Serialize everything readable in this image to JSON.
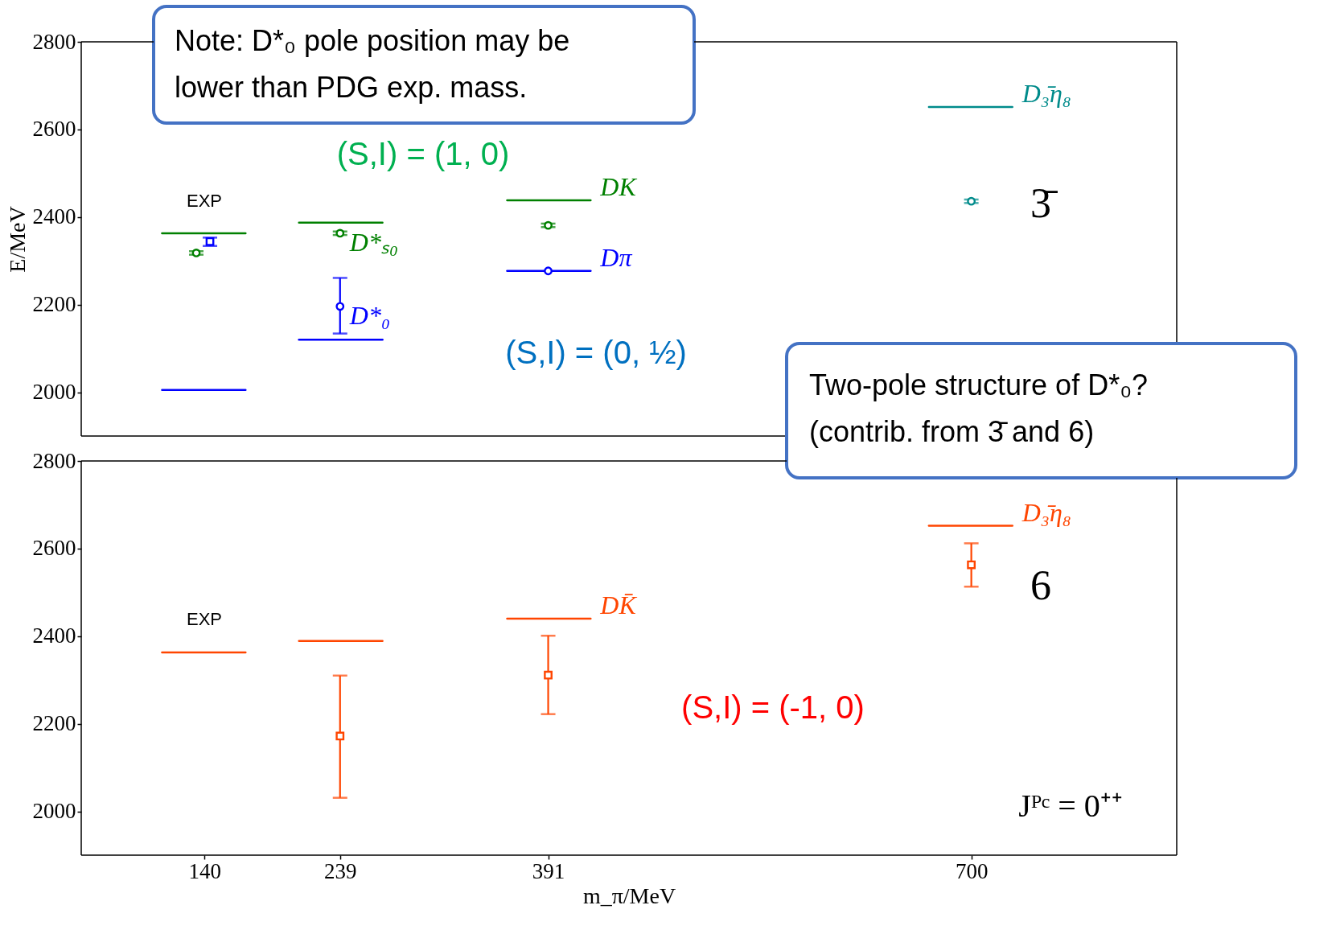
{
  "chart_data": [
    {
      "type": "scatter",
      "ylabel": "E/MeV",
      "xlim": [
        50,
        850
      ],
      "xticks": [
        140,
        239,
        391,
        700
      ],
      "ylim": [
        1900,
        2800
      ],
      "yticks": [
        2000,
        2200,
        2400,
        2600,
        2800
      ],
      "tick_labels": "y",
      "series": [
        {
          "type": "line",
          "color": "#008000",
          "x": [
            109,
            170
          ],
          "values": [
            2363,
            2363
          ]
        },
        {
          "type": "line",
          "color": "#0000ff",
          "x": [
            109,
            170
          ],
          "values": [
            2005,
            2005
          ]
        },
        {
          "type": "line",
          "color": "#008000",
          "x": [
            209,
            270
          ],
          "values": [
            2387,
            2387
          ]
        },
        {
          "type": "line",
          "color": "#0000ff",
          "x": [
            209,
            270
          ],
          "values": [
            2120,
            2120
          ]
        },
        {
          "type": "line",
          "name": "DK",
          "color": "#008000",
          "x": [
            361,
            422
          ],
          "values": [
            2438,
            2438
          ]
        },
        {
          "type": "line",
          "name": "Dπ",
          "color": "#0000ff",
          "x": [
            361,
            422
          ],
          "values": [
            2277,
            2277
          ]
        },
        {
          "type": "line",
          "name": "D₃̄η₈",
          "color": "#008b8b",
          "x": [
            669,
            730
          ],
          "values": [
            2651,
            2651
          ]
        },
        {
          "marker": "circle",
          "color": "#008000",
          "x": [
            134
          ],
          "values": [
            2318
          ],
          "errors": [
            4
          ]
        },
        {
          "marker": "square",
          "color": "#0000ff",
          "x": [
            144
          ],
          "values": [
            2344
          ],
          "errors": [
            [
              2334,
              2353
            ]
          ]
        },
        {
          "marker": "circle",
          "name": "D*ₛ₀",
          "color": "#008000",
          "x": [
            239
          ],
          "values": [
            2363
          ],
          "errors": [
            4
          ]
        },
        {
          "marker": "circle",
          "name": "D*₀",
          "color": "#0000ff",
          "x": [
            239
          ],
          "values": [
            2196
          ],
          "errors": [
            [
              2134,
              2261
            ]
          ]
        },
        {
          "marker": "circle",
          "color": "#008000",
          "x": [
            391
          ],
          "values": [
            2381
          ],
          "errors": [
            4
          ]
        },
        {
          "marker": "circle",
          "color": "#0000ff",
          "x": [
            391
          ],
          "values": [
            2277
          ]
        },
        {
          "marker": "circle",
          "color": "#008b8b",
          "x": [
            700
          ],
          "values": [
            2436
          ],
          "errors": [
            4
          ]
        }
      ],
      "annotations": [
        "EXP",
        "3̄",
        "Note: D*₀ pole position may be\nlower than PDG exp. mass.",
        "(S,I) = (1, 0)",
        "(S,I) = (0, ½)"
      ]
    },
    {
      "type": "scatter",
      "xlabel": "m_π/MeV",
      "xlim": [
        50,
        850
      ],
      "xticks": [
        140,
        239,
        391,
        700
      ],
      "ylim": [
        1900,
        2800
      ],
      "yticks": [
        2000,
        2200,
        2400,
        2600,
        2800
      ],
      "series": [
        {
          "type": "line",
          "color": "#ff4500",
          "x": [
            109,
            170
          ],
          "values": [
            2363,
            2363
          ]
        },
        {
          "type": "line",
          "color": "#ff4500",
          "x": [
            209,
            270
          ],
          "values": [
            2389,
            2389
          ]
        },
        {
          "type": "line",
          "name": "DK̄",
          "color": "#ff4500",
          "x": [
            361,
            422
          ],
          "values": [
            2440,
            2440
          ]
        },
        {
          "type": "line",
          "name": "D₃̄η₈",
          "color": "#ff4500",
          "x": [
            669,
            730
          ],
          "values": [
            2652,
            2652
          ]
        },
        {
          "marker": "square",
          "color": "#ff4500",
          "x": [
            239
          ],
          "values": [
            2172
          ],
          "errors": [
            [
              2031,
              2310
            ]
          ]
        },
        {
          "marker": "square",
          "color": "#ff4500",
          "x": [
            391
          ],
          "values": [
            2311
          ],
          "errors": [
            [
              2222,
              2401
            ]
          ]
        },
        {
          "marker": "square",
          "color": "#ff4500",
          "x": [
            700
          ],
          "values": [
            2563
          ],
          "errors": [
            [
              2513,
              2612
            ]
          ]
        }
      ],
      "annotations": [
        "EXP",
        "6",
        "Two-pole structure of D*₀?\n(contrib. from 3̄ and 6)",
        "(S,I) = (-1, 0)",
        "Jᴾᶜ = 0⁺⁺"
      ]
    }
  ]
}
